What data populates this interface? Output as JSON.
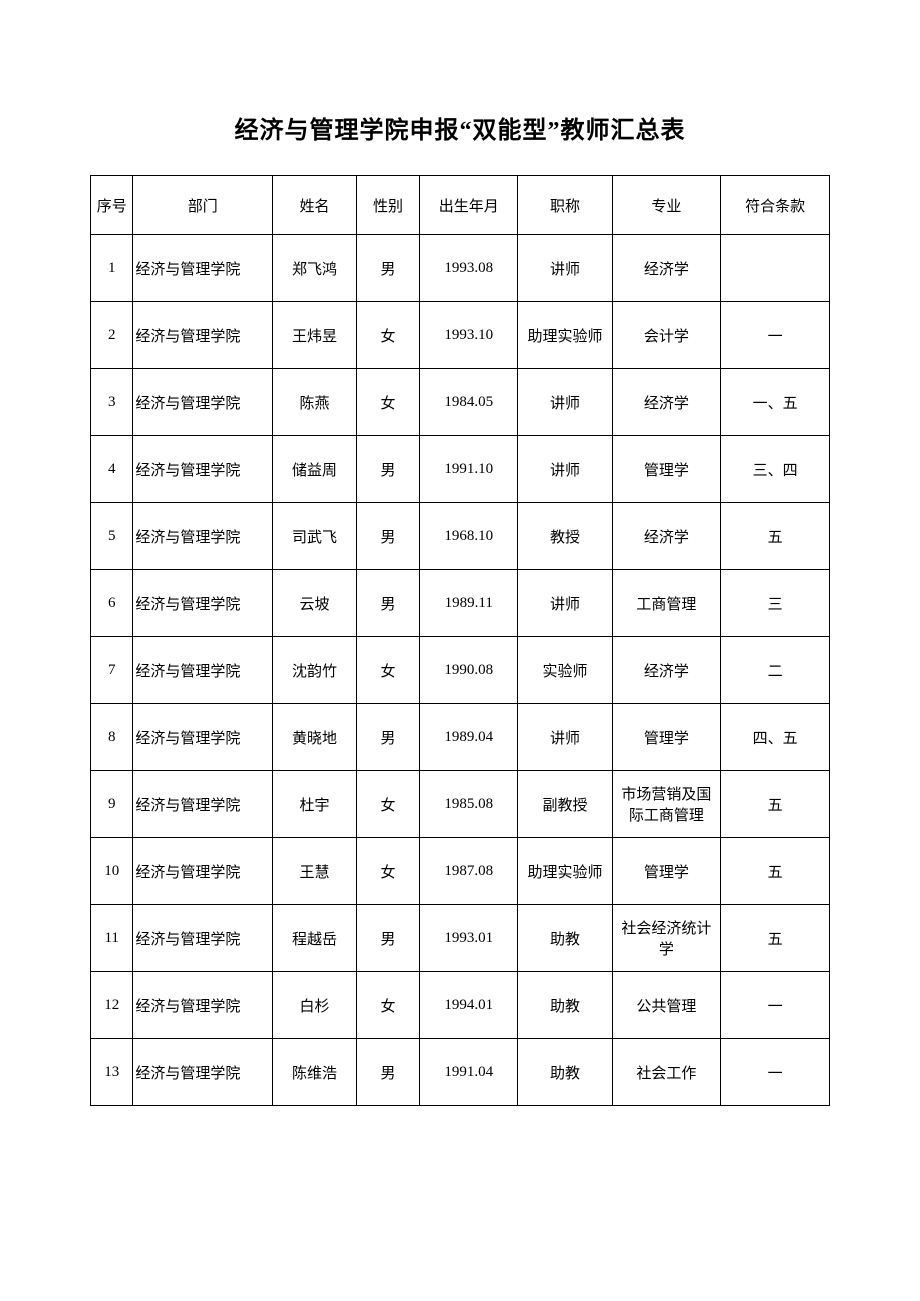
{
  "title": "经济与管理学院申报“双能型”教师汇总表",
  "table": {
    "columns": [
      "序号",
      "部门",
      "姓名",
      "性别",
      "出生年月",
      "职称",
      "专业",
      "符合条款"
    ],
    "rows": [
      {
        "seq": "1",
        "dept": "经济与管理学院",
        "name": "郑飞鸿",
        "gender": "男",
        "birth": "1993.08",
        "title": "讲师",
        "major": "经济学",
        "cond": ""
      },
      {
        "seq": "2",
        "dept": "经济与管理学院",
        "name": "王炜昱",
        "gender": "女",
        "birth": "1993.10",
        "title": "助理实验师",
        "major": "会计学",
        "cond": "一"
      },
      {
        "seq": "3",
        "dept": "经济与管理学院",
        "name": "陈燕",
        "gender": "女",
        "birth": "1984.05",
        "title": "讲师",
        "major": "经济学",
        "cond": "一、五"
      },
      {
        "seq": "4",
        "dept": "经济与管理学院",
        "name": "储益周",
        "gender": "男",
        "birth": "1991.10",
        "title": "讲师",
        "major": "管理学",
        "cond": "三、四"
      },
      {
        "seq": "5",
        "dept": "经济与管理学院",
        "name": "司武飞",
        "gender": "男",
        "birth": "1968.10",
        "title": "教授",
        "major": "经济学",
        "cond": "五"
      },
      {
        "seq": "6",
        "dept": "经济与管理学院",
        "name": "云坡",
        "gender": "男",
        "birth": "1989.11",
        "title": "讲师",
        "major": "工商管理",
        "cond": "三"
      },
      {
        "seq": "7",
        "dept": "经济与管理学院",
        "name": "沈韵竹",
        "gender": "女",
        "birth": "1990.08",
        "title": "实验师",
        "major": "经济学",
        "cond": "二"
      },
      {
        "seq": "8",
        "dept": "经济与管理学院",
        "name": "黄晓地",
        "gender": "男",
        "birth": "1989.04",
        "title": "讲师",
        "major": "管理学",
        "cond": "四、五"
      },
      {
        "seq": "9",
        "dept": "经济与管理学院",
        "name": "杜宇",
        "gender": "女",
        "birth": "1985.08",
        "title": "副教授",
        "major": "市场营销及国际工商管理",
        "cond": "五"
      },
      {
        "seq": "10",
        "dept": "经济与管理学院",
        "name": "王慧",
        "gender": "女",
        "birth": "1987.08",
        "title": "助理实验师",
        "major": "管理学",
        "cond": "五"
      },
      {
        "seq": "11",
        "dept": "经济与管理学院",
        "name": "程越岳",
        "gender": "男",
        "birth": "1993.01",
        "title": "助教",
        "major": "社会经济统计学",
        "cond": "五"
      },
      {
        "seq": "12",
        "dept": "经济与管理学院",
        "name": "白杉",
        "gender": "女",
        "birth": "1994.01",
        "title": "助教",
        "major": "公共管理",
        "cond": "一"
      },
      {
        "seq": "13",
        "dept": "经济与管理学院",
        "name": "陈维浩",
        "gender": "男",
        "birth": "1991.04",
        "title": "助教",
        "major": "社会工作",
        "cond": "一"
      }
    ]
  }
}
